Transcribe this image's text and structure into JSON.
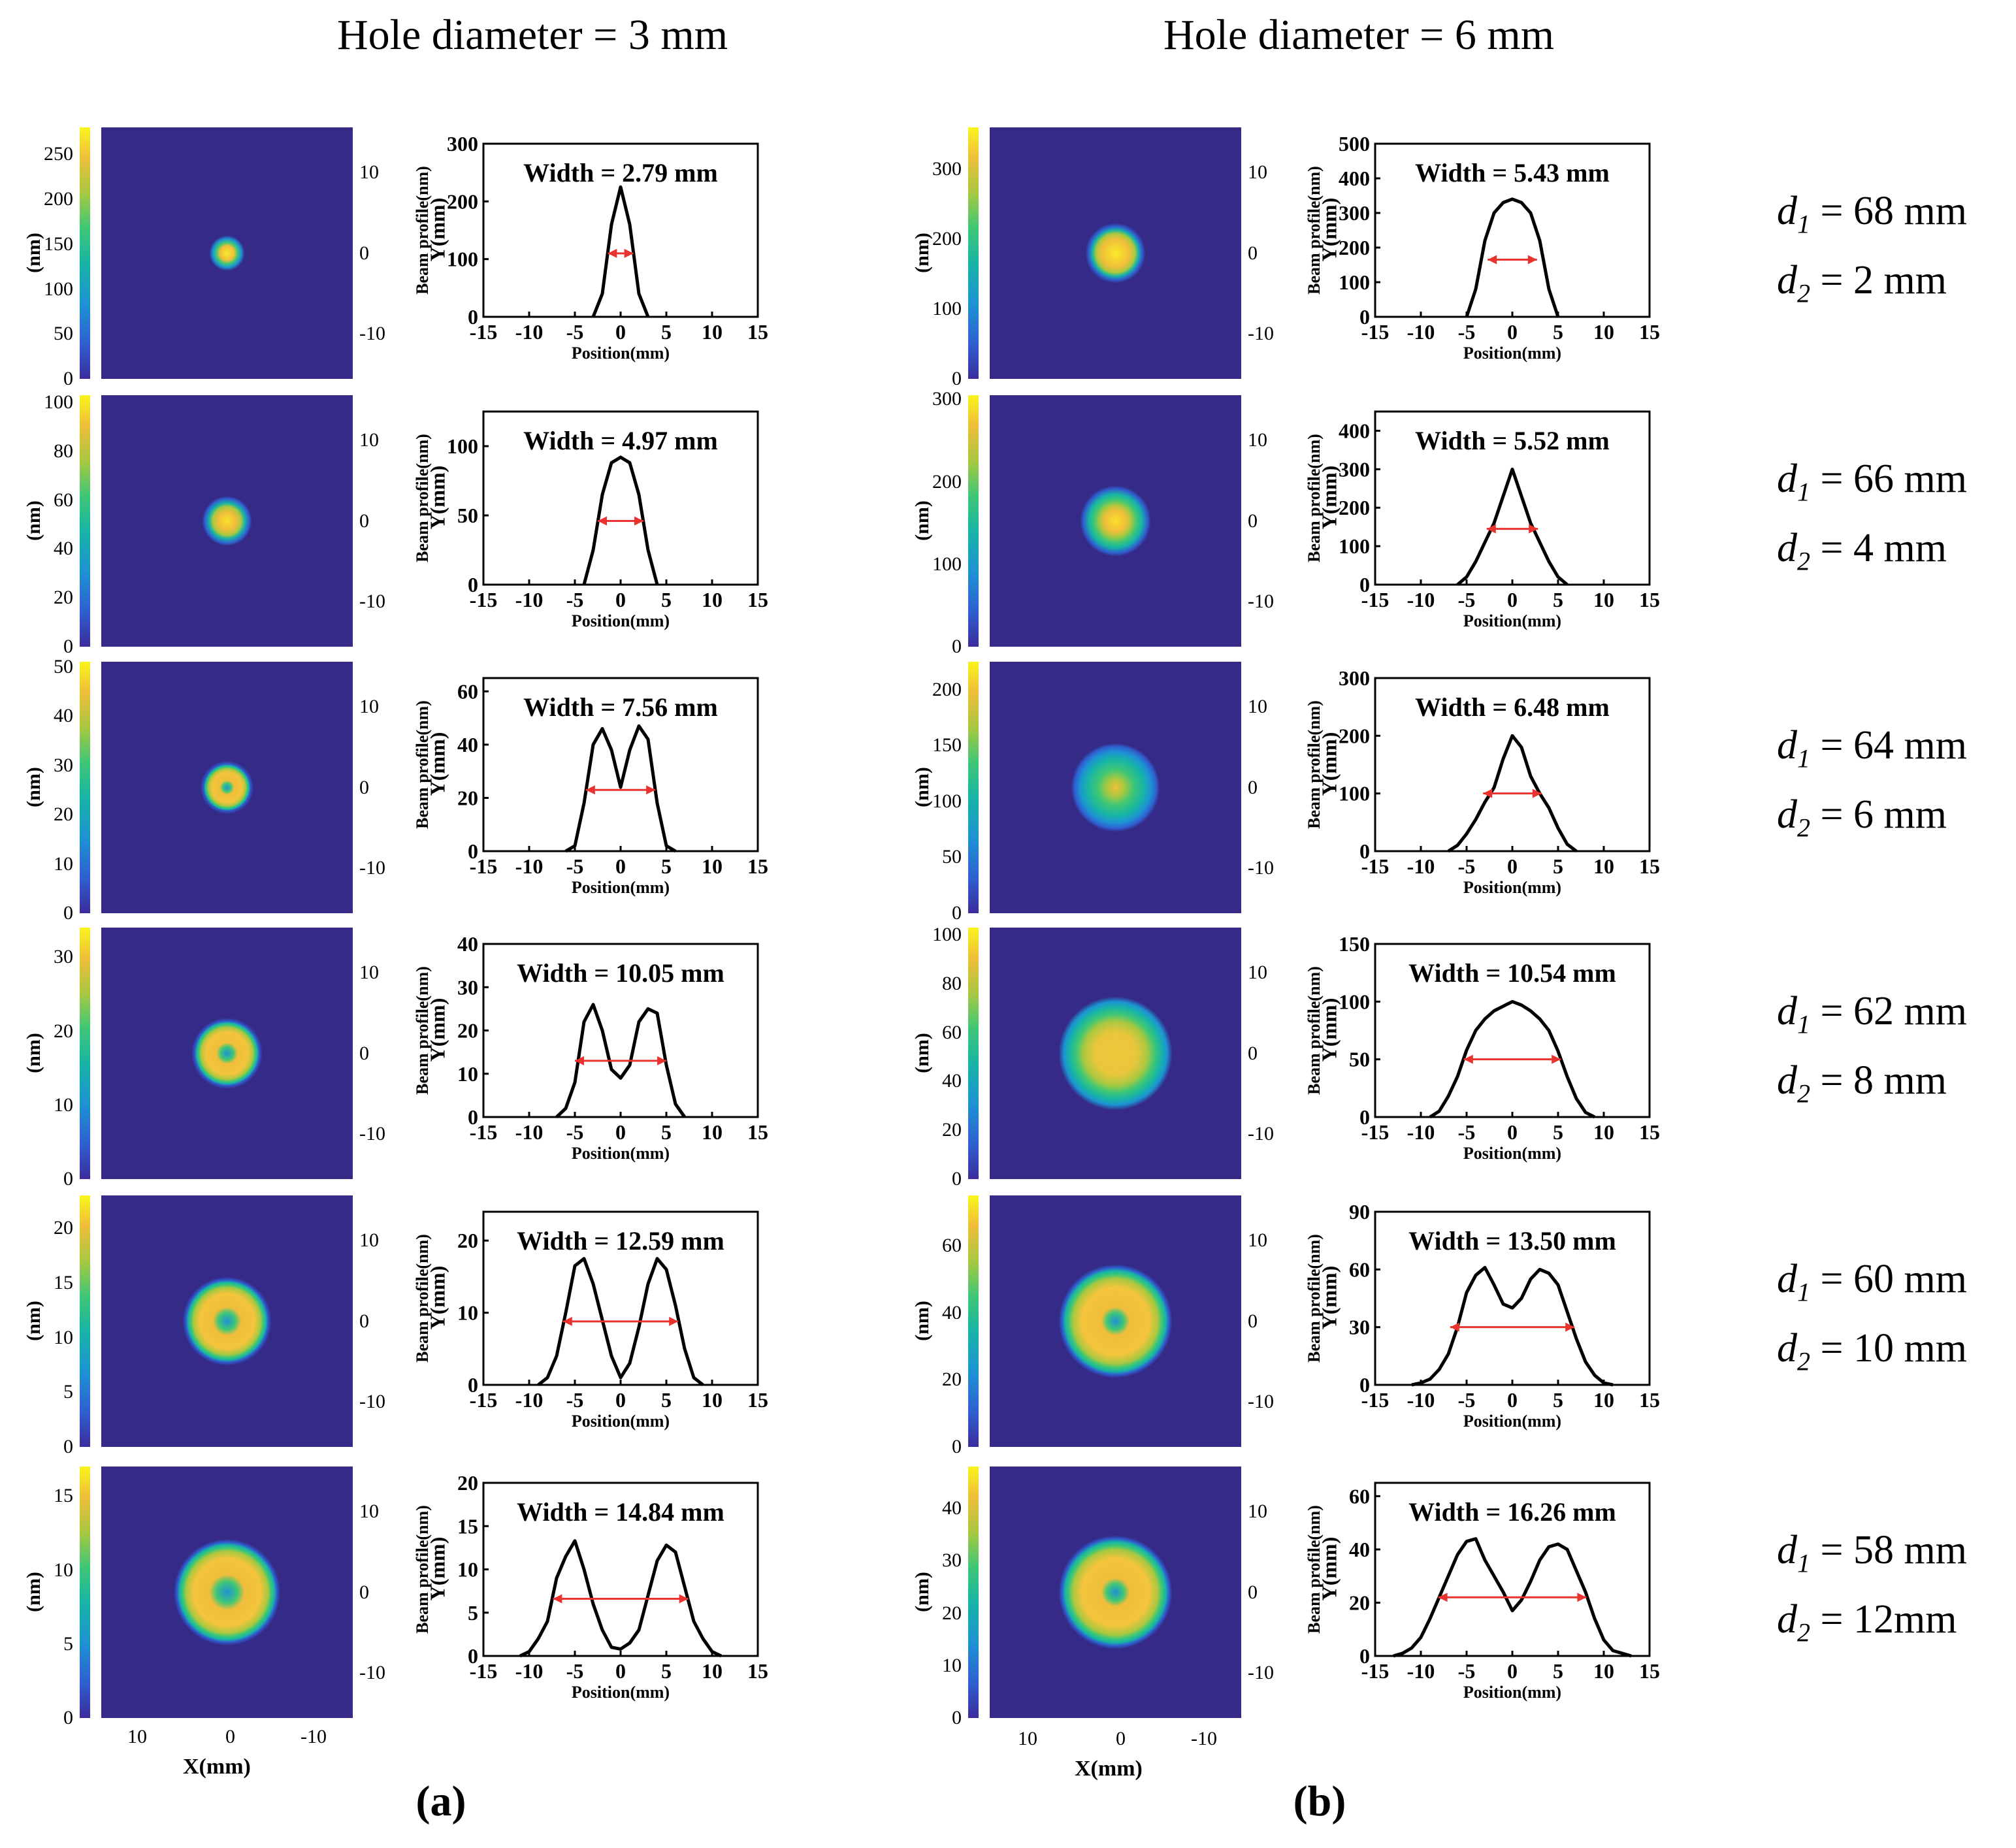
{
  "header": {
    "left_title": "Hole diameter = 3 mm",
    "right_title": "Hole diameter = 6 mm",
    "label_a": "(a)",
    "label_b": "(b)"
  },
  "axis_labels": {
    "colorbar_unit": "(nm)",
    "map_y": "Y(mm)",
    "map_x": "X(mm)",
    "profile_y": "Beam profile(nm)",
    "profile_x": "Position(mm)",
    "map_y_ticks": [
      "10",
      "0",
      "-10"
    ],
    "map_x_ticks": [
      "10",
      "0",
      "-10"
    ]
  },
  "rows": [
    {
      "d1": "68 mm",
      "d2": "2 mm"
    },
    {
      "d1": "66 mm",
      "d2": "4 mm"
    },
    {
      "d1": "64 mm",
      "d2": "6 mm"
    },
    {
      "d1": "62 mm",
      "d2": "8 mm"
    },
    {
      "d1": "60 mm",
      "d2": "10 mm"
    },
    {
      "d1": "58 mm",
      "d2": "12mm"
    }
  ],
  "d_labels": {
    "d1": "d",
    "d1_sub": "1",
    "d2": "d",
    "d2_sub": "2",
    "eq": " = "
  },
  "colors": {
    "background_map": "#352a87",
    "curve": "#000000",
    "arrow": "#e8332f"
  },
  "chart_data": [
    {
      "type": "line",
      "panel": "a",
      "row": 1,
      "title": "Width = 2.79 mm",
      "xlabel": "Position(mm)",
      "ylabel": "Beam profile(nm)",
      "xlim": [
        -15,
        15
      ],
      "ylim": [
        0,
        300
      ],
      "yticks": [
        0,
        100,
        200,
        300
      ],
      "xticks": [
        -15,
        -10,
        -5,
        0,
        5,
        10,
        15
      ],
      "x": [
        -3,
        -2,
        -1,
        0,
        1,
        2,
        3
      ],
      "values": [
        0,
        40,
        160,
        225,
        160,
        40,
        0
      ],
      "arrow": [
        -1.4,
        1.4,
        110
      ],
      "colorbar_max": 280,
      "colorbar_ticks": [
        0,
        50,
        100,
        150,
        200,
        250
      ]
    },
    {
      "type": "line",
      "panel": "a",
      "row": 2,
      "title": "Width = 4.97 mm",
      "xlabel": "Position(mm)",
      "ylabel": "Beam profile(nm)",
      "xlim": [
        -15,
        15
      ],
      "ylim": [
        0,
        125
      ],
      "yticks": [
        0,
        50,
        100
      ],
      "xticks": [
        -15,
        -10,
        -5,
        0,
        5,
        10,
        15
      ],
      "x": [
        -4,
        -3,
        -2,
        -1,
        0,
        1,
        2,
        3,
        4
      ],
      "values": [
        0,
        25,
        65,
        88,
        92,
        88,
        65,
        25,
        0
      ],
      "arrow": [
        -2.5,
        2.5,
        46
      ],
      "colorbar_max": 103,
      "colorbar_ticks": [
        0,
        20,
        40,
        60,
        80,
        100
      ]
    },
    {
      "type": "line",
      "panel": "a",
      "row": 3,
      "title": "Width = 7.56 mm",
      "xlabel": "Position(mm)",
      "ylabel": "Beam profile(nm)",
      "xlim": [
        -15,
        15
      ],
      "ylim": [
        0,
        65
      ],
      "yticks": [
        0,
        20,
        40,
        60
      ],
      "xticks": [
        -15,
        -10,
        -5,
        0,
        5,
        10,
        15
      ],
      "x": [
        -6,
        -5,
        -4,
        -3,
        -2,
        -1,
        0,
        1,
        2,
        3,
        4,
        5,
        6
      ],
      "values": [
        0,
        2,
        18,
        40,
        46,
        38,
        24,
        38,
        47,
        42,
        18,
        2,
        0
      ],
      "arrow": [
        -3.8,
        3.8,
        23
      ],
      "colorbar_max": 51,
      "colorbar_ticks": [
        0,
        10,
        20,
        30,
        40,
        50
      ]
    },
    {
      "type": "line",
      "panel": "a",
      "row": 4,
      "title": "Width = 10.05 mm",
      "xlabel": "Position(mm)",
      "ylabel": "Beam profile(nm)",
      "xlim": [
        -15,
        15
      ],
      "ylim": [
        0,
        40
      ],
      "yticks": [
        0,
        10,
        20,
        30,
        40
      ],
      "xticks": [
        -15,
        -10,
        -5,
        0,
        5,
        10,
        15
      ],
      "x": [
        -7,
        -6,
        -5,
        -4,
        -3,
        -2,
        -1,
        0,
        1,
        2,
        3,
        4,
        5,
        6,
        7
      ],
      "values": [
        0,
        2,
        8,
        22,
        26,
        20,
        11,
        9,
        12,
        22,
        25,
        24,
        12,
        3,
        0
      ],
      "arrow": [
        -5,
        5,
        13
      ],
      "colorbar_max": 34,
      "colorbar_ticks": [
        0,
        10,
        20,
        30
      ]
    },
    {
      "type": "line",
      "panel": "a",
      "row": 5,
      "title": "Width = 12.59 mm",
      "xlabel": "Position(mm)",
      "ylabel": "Beam profile(nm)",
      "xlim": [
        -15,
        15
      ],
      "ylim": [
        0,
        24
      ],
      "yticks": [
        0,
        10,
        20
      ],
      "xticks": [
        -15,
        -10,
        -5,
        0,
        5,
        10,
        15
      ],
      "x": [
        -9,
        -8,
        -7,
        -6,
        -5,
        -4,
        -3,
        -2,
        -1,
        0,
        1,
        2,
        3,
        4,
        5,
        6,
        7,
        8,
        9
      ],
      "values": [
        0,
        1,
        4,
        10,
        16.5,
        17.5,
        14,
        9,
        4,
        1,
        3,
        8,
        14,
        17.5,
        16,
        11,
        5,
        1,
        0
      ],
      "arrow": [
        -6.3,
        6.3,
        8.8
      ],
      "colorbar_max": 23,
      "colorbar_ticks": [
        0,
        5,
        10,
        15,
        20
      ]
    },
    {
      "type": "line",
      "panel": "a",
      "row": 6,
      "title": "Width = 14.84 mm",
      "xlabel": "Position(mm)",
      "ylabel": "Beam profile(nm)",
      "xlim": [
        -15,
        15
      ],
      "ylim": [
        0,
        20
      ],
      "yticks": [
        0,
        5,
        10,
        15,
        20
      ],
      "xticks": [
        -15,
        -10,
        -5,
        0,
        5,
        10,
        15
      ],
      "x": [
        -11,
        -10,
        -9,
        -8,
        -7,
        -6,
        -5,
        -4,
        -3,
        -2,
        -1,
        0,
        1,
        2,
        3,
        4,
        5,
        6,
        7,
        8,
        9,
        10,
        11
      ],
      "values": [
        0,
        0.5,
        2,
        4,
        9,
        11.5,
        13.3,
        10,
        6,
        3,
        1,
        0.8,
        1.5,
        3,
        7,
        11,
        12.8,
        12,
        8,
        4,
        2,
        0.5,
        0
      ],
      "arrow": [
        -7.4,
        7.4,
        6.6
      ],
      "colorbar_max": 17,
      "colorbar_ticks": [
        0,
        5,
        10,
        15
      ]
    },
    {
      "type": "line",
      "panel": "b",
      "row": 1,
      "title": "Width = 5.43 mm",
      "xlabel": "Position(mm)",
      "ylabel": "Beam profile(nm)",
      "xlim": [
        -15,
        15
      ],
      "ylim": [
        0,
        500
      ],
      "yticks": [
        0,
        100,
        200,
        300,
        400,
        500
      ],
      "xticks": [
        -15,
        -10,
        -5,
        0,
        5,
        10,
        15
      ],
      "x": [
        -5,
        -4,
        -3,
        -2,
        -1,
        0,
        1,
        2,
        3,
        4,
        5
      ],
      "values": [
        0,
        80,
        220,
        300,
        330,
        340,
        330,
        300,
        220,
        80,
        0
      ],
      "arrow": [
        -2.7,
        2.7,
        165
      ],
      "colorbar_max": 360,
      "colorbar_ticks": [
        0,
        100,
        200,
        300
      ]
    },
    {
      "type": "line",
      "panel": "b",
      "row": 2,
      "title": "Width = 5.52 mm",
      "xlabel": "Position(mm)",
      "ylabel": "Beam profile(nm)",
      "xlim": [
        -15,
        15
      ],
      "ylim": [
        0,
        450
      ],
      "yticks": [
        0,
        100,
        200,
        300,
        400
      ],
      "xticks": [
        -15,
        -10,
        -5,
        0,
        5,
        10,
        15
      ],
      "x": [
        -6,
        -5,
        -4,
        -3,
        -2,
        -1,
        0,
        1,
        2,
        3,
        4,
        5,
        6
      ],
      "values": [
        0,
        20,
        60,
        110,
        160,
        230,
        300,
        230,
        160,
        110,
        60,
        20,
        0
      ],
      "arrow": [
        -2.8,
        2.8,
        145
      ],
      "colorbar_max": 305,
      "colorbar_ticks": [
        0,
        100,
        200,
        300
      ]
    },
    {
      "type": "line",
      "panel": "b",
      "row": 3,
      "title": "Width = 6.48 mm",
      "xlabel": "Position(mm)",
      "ylabel": "Beam profile(nm)",
      "xlim": [
        -15,
        15
      ],
      "ylim": [
        0,
        300
      ],
      "yticks": [
        0,
        100,
        200,
        300
      ],
      "xticks": [
        -15,
        -10,
        -5,
        0,
        5,
        10,
        15
      ],
      "x": [
        -7,
        -6,
        -5,
        -4,
        -3,
        -2,
        -1,
        0,
        1,
        2,
        3,
        4,
        5,
        6,
        7
      ],
      "values": [
        0,
        10,
        30,
        55,
        85,
        110,
        160,
        200,
        180,
        130,
        100,
        75,
        40,
        12,
        0
      ],
      "arrow": [
        -3.2,
        3.2,
        100
      ],
      "colorbar_max": 225,
      "colorbar_ticks": [
        0,
        50,
        100,
        150,
        200
      ]
    },
    {
      "type": "line",
      "panel": "b",
      "row": 4,
      "title": "Width = 10.54 mm",
      "xlabel": "Position(mm)",
      "ylabel": "Beam profile(nm)",
      "xlim": [
        -15,
        15
      ],
      "ylim": [
        0,
        150
      ],
      "yticks": [
        0,
        50,
        100,
        150
      ],
      "xticks": [
        -15,
        -10,
        -5,
        0,
        5,
        10,
        15
      ],
      "x": [
        -9,
        -8,
        -7,
        -6,
        -5,
        -4,
        -3,
        -2,
        -1,
        0,
        1,
        2,
        3,
        4,
        5,
        6,
        7,
        8,
        9
      ],
      "values": [
        0,
        5,
        18,
        35,
        58,
        75,
        85,
        92,
        96,
        100,
        97,
        92,
        85,
        75,
        57,
        35,
        16,
        4,
        0
      ],
      "arrow": [
        -5.3,
        5.3,
        50
      ],
      "colorbar_max": 103,
      "colorbar_ticks": [
        0,
        20,
        40,
        60,
        80,
        100
      ]
    },
    {
      "type": "line",
      "panel": "b",
      "row": 5,
      "title": "Width = 13.50 mm",
      "xlabel": "Position(mm)",
      "ylabel": "Beam profile(nm)",
      "xlim": [
        -15,
        15
      ],
      "ylim": [
        0,
        90
      ],
      "yticks": [
        0,
        30,
        60,
        90
      ],
      "xticks": [
        -15,
        -10,
        -5,
        0,
        5,
        10,
        15
      ],
      "x": [
        -11,
        -10,
        -9,
        -8,
        -7,
        -6,
        -5,
        -4,
        -3,
        -2,
        -1,
        0,
        1,
        2,
        3,
        4,
        5,
        6,
        7,
        8,
        9,
        10,
        11
      ],
      "values": [
        0,
        1,
        3,
        8,
        16,
        30,
        48,
        57,
        61,
        52,
        42,
        40,
        45,
        55,
        60,
        58,
        52,
        38,
        24,
        12,
        5,
        1,
        0
      ],
      "arrow": [
        -6.8,
        6.8,
        30
      ],
      "colorbar_max": 75,
      "colorbar_ticks": [
        0,
        20,
        40,
        60
      ]
    },
    {
      "type": "line",
      "panel": "b",
      "row": 6,
      "title": "Width = 16.26 mm",
      "xlabel": "Position(mm)",
      "ylabel": "Beam profile(nm)",
      "xlim": [
        -15,
        15
      ],
      "ylim": [
        0,
        65
      ],
      "yticks": [
        0,
        20,
        40,
        60
      ],
      "xticks": [
        -15,
        -10,
        -5,
        0,
        5,
        10,
        15
      ],
      "x": [
        -13,
        -12,
        -11,
        -10,
        -9,
        -8,
        -7,
        -6,
        -5,
        -4,
        -3,
        -2,
        -1,
        0,
        1,
        2,
        3,
        4,
        5,
        6,
        7,
        8,
        9,
        10,
        11,
        12,
        13
      ],
      "values": [
        0,
        1,
        3,
        7,
        14,
        22,
        30,
        38,
        43,
        44,
        36,
        30,
        24,
        17,
        21,
        28,
        36,
        41,
        42,
        40,
        32,
        24,
        14,
        6,
        2,
        1,
        0
      ],
      "arrow": [
        -8.1,
        8.1,
        22
      ],
      "colorbar_max": 48,
      "colorbar_ticks": [
        0,
        10,
        20,
        30,
        40
      ]
    }
  ]
}
